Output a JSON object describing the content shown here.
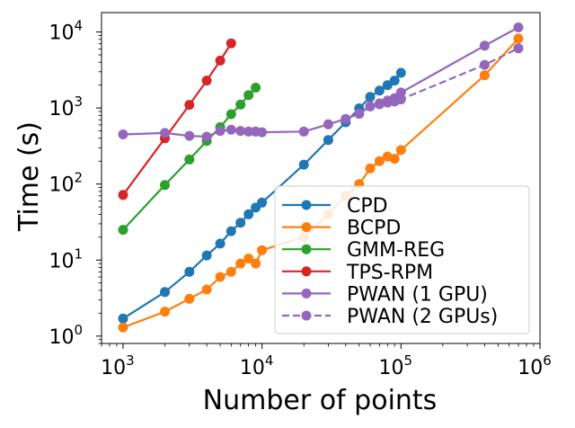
{
  "chart_data": {
    "type": "line",
    "title": "",
    "xlabel": "Number of points",
    "ylabel": "Time (s)",
    "xscale": "log",
    "yscale": "log",
    "xlim": [
      700,
      1000000
    ],
    "ylim": [
      0.8,
      18000
    ],
    "grid": false,
    "legend_position": "lower-right",
    "x_ticks": [
      {
        "base": "10",
        "exp": "3",
        "value": 1000
      },
      {
        "base": "10",
        "exp": "4",
        "value": 10000
      },
      {
        "base": "10",
        "exp": "5",
        "value": 100000
      },
      {
        "base": "10",
        "exp": "6",
        "value": 1000000
      }
    ],
    "y_ticks": [
      {
        "base": "10",
        "exp": "0",
        "value": 1
      },
      {
        "base": "10",
        "exp": "1",
        "value": 10
      },
      {
        "base": "10",
        "exp": "2",
        "value": 100
      },
      {
        "base": "10",
        "exp": "3",
        "value": 1000
      },
      {
        "base": "10",
        "exp": "4",
        "value": 10000
      }
    ],
    "series": [
      {
        "name": "CPD",
        "color": "#1f77b4",
        "dashed": false,
        "x": [
          1000,
          2000,
          3000,
          4000,
          5000,
          6000,
          7000,
          8000,
          9000,
          10000,
          20000,
          30000,
          40000,
          50000,
          60000,
          70000,
          80000,
          90000,
          100000
        ],
        "y": [
          1.7,
          3.8,
          7.0,
          11.5,
          16.5,
          24,
          31,
          40,
          49,
          57,
          180,
          380,
          650,
          990,
          1400,
          1700,
          2000,
          2300,
          2900
        ]
      },
      {
        "name": "BCPD",
        "color": "#ff7f0e",
        "dashed": false,
        "x": [
          1000,
          2000,
          3000,
          4000,
          5000,
          6000,
          7000,
          8000,
          9000,
          10000,
          20000,
          30000,
          40000,
          50000,
          60000,
          70000,
          80000,
          90000,
          100000,
          400000,
          700000
        ],
        "y": [
          1.3,
          2.1,
          3.1,
          4.1,
          6.0,
          7.0,
          9.0,
          10.5,
          9.0,
          13.5,
          20,
          40,
          70,
          100,
          160,
          200,
          230,
          215,
          280,
          2700,
          8200
        ]
      },
      {
        "name": "GMM-REG",
        "color": "#2ca02c",
        "dashed": false,
        "x": [
          1000,
          2000,
          3000,
          4000,
          5000,
          6000,
          7000,
          8000,
          9000
        ],
        "y": [
          25,
          97,
          210,
          370,
          560,
          830,
          1110,
          1480,
          1850
        ]
      },
      {
        "name": "TPS-RPM",
        "color": "#d62728",
        "dashed": false,
        "x": [
          1000,
          2000,
          3000,
          4000,
          5000,
          6000
        ],
        "y": [
          72,
          400,
          1100,
          2300,
          4200,
          7100
        ]
      },
      {
        "name": "PWAN (1 GPU)",
        "color": "#9467bd",
        "dashed": false,
        "x": [
          1000,
          2000,
          3000,
          4000,
          5000,
          6000,
          7000,
          8000,
          9000,
          10000,
          20000,
          30000,
          40000,
          50000,
          60000,
          70000,
          80000,
          90000,
          100000,
          400000,
          700000
        ],
        "y": [
          450,
          470,
          430,
          420,
          500,
          520,
          500,
          490,
          490,
          480,
          490,
          610,
          720,
          840,
          1050,
          1150,
          1250,
          1350,
          1600,
          6600,
          11500
        ]
      },
      {
        "name": "PWAN (2 GPUs)",
        "color": "#9467bd",
        "dashed": true,
        "x": [
          50000,
          60000,
          70000,
          80000,
          90000,
          100000,
          400000,
          700000
        ],
        "y": [
          840,
          1050,
          1120,
          1180,
          1220,
          1300,
          3700,
          6100
        ]
      }
    ]
  }
}
